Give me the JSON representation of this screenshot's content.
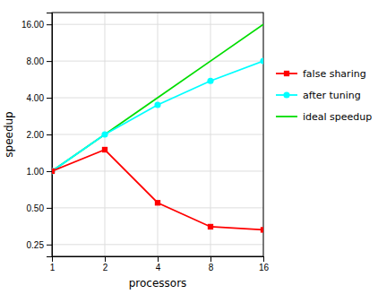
{
  "chart_data": {
    "type": "line",
    "xlabel": "processors",
    "ylabel": "speedup",
    "x": [
      1,
      2,
      4,
      8,
      16
    ],
    "series": [
      {
        "name": "false sharing",
        "color": "#ff0000",
        "marker": "square",
        "values": [
          1.0,
          1.5,
          0.55,
          0.35,
          0.33
        ]
      },
      {
        "name": "after tuning",
        "color": "#00ffff",
        "marker": "circle",
        "values": [
          1.0,
          2.0,
          3.5,
          5.5,
          8.0
        ]
      },
      {
        "name": "ideal speedup",
        "color": "#00dd00",
        "values": [
          1.0,
          2.0,
          4.0,
          8.0,
          16.0
        ]
      }
    ],
    "log": true,
    "xlim": [
      1,
      16
    ],
    "xticks": [
      1,
      2,
      4,
      8,
      16
    ],
    "ylim": [
      0.2,
      20
    ],
    "yticks": [
      0.25,
      {
        "value": 0.5,
        "label": "0.50"
      },
      {
        "value": 1.0,
        "label": "1.00"
      },
      {
        "value": 2.0,
        "label": "2.00"
      },
      {
        "value": 4.0,
        "label": "4.00"
      },
      {
        "value": 8.0,
        "label": "8.00"
      },
      {
        "value": 16.0,
        "label": "16.00"
      }
    ],
    "grid": true,
    "legend": "right"
  }
}
